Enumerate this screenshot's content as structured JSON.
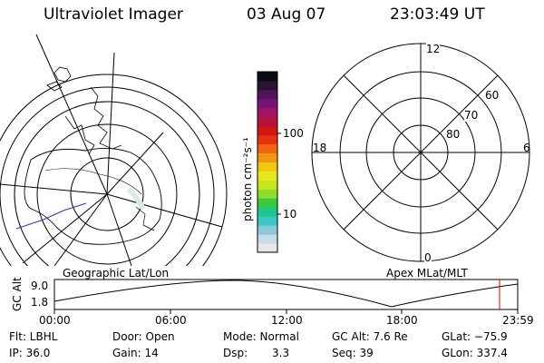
{
  "header": {
    "title": "Ultraviolet Imager",
    "date": "03 Aug 07",
    "time": "23:03:49  UT"
  },
  "left_panel": {
    "caption": "Geographic Lat/Lon"
  },
  "colorbar": {
    "unit_label": "photon cm⁻²s⁻¹",
    "tick_100": "100",
    "tick_10": "10",
    "colors": [
      "#e6e6e6",
      "#c8dce6",
      "#8cc8dc",
      "#3cc8c8",
      "#1ec88c",
      "#3cc83c",
      "#8cdc28",
      "#c8e61e",
      "#e6e61e",
      "#f0c814",
      "#f09614",
      "#f06414",
      "#e63214",
      "#d21414",
      "#b4143c",
      "#a01464",
      "#781478",
      "#50145a",
      "#281432",
      "#0a0a14"
    ]
  },
  "right_panel": {
    "caption": "Apex  MLat/MLT",
    "mlt_top": "12",
    "mlt_left": "18",
    "mlt_right": "6",
    "mlt_bottom": "0",
    "lat_60": "60",
    "lat_70": "70",
    "lat_80": "80"
  },
  "altitude_plot": {
    "ylabel": "GC Alt",
    "ymax": "9.0",
    "ymin": "1.8",
    "x_ticks": [
      "00:00",
      "06:00",
      "12:00",
      "18:00",
      "23:59"
    ],
    "marker_color": "#e00000"
  },
  "info": {
    "flt": "Flt: LBHL",
    "ip": "IP: 36.0",
    "door": "Door: Open",
    "gain": "Gain: 14",
    "mode": "Mode: Normal",
    "dsp_label": "Dsp:",
    "dsp_value": "3.3",
    "gc_alt": "GC Alt: 7.6 Re",
    "seq": "Seq: 39",
    "glat": "GLat: −75.9",
    "glon": "GLon: 337.4"
  }
}
